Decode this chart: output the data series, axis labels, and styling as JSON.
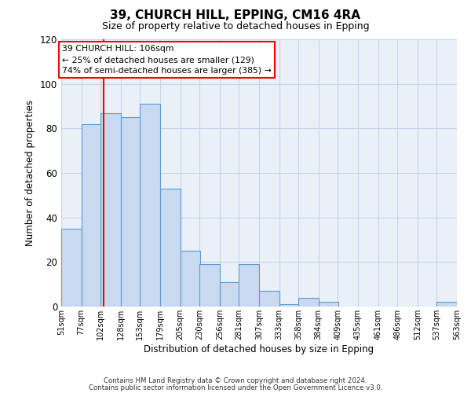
{
  "title": "39, CHURCH HILL, EPPING, CM16 4RA",
  "subtitle": "Size of property relative to detached houses in Epping",
  "xlabel": "Distribution of detached houses by size in Epping",
  "ylabel": "Number of detached properties",
  "bar_left_edges": [
    51,
    77,
    102,
    128,
    153,
    179,
    205,
    230,
    256,
    281,
    307,
    333,
    358,
    384,
    409,
    435,
    461,
    486,
    512,
    537
  ],
  "bar_heights": [
    35,
    82,
    87,
    85,
    91,
    53,
    25,
    19,
    11,
    19,
    7,
    1,
    4,
    2,
    0,
    0,
    0,
    0,
    0,
    2
  ],
  "bin_width": 26,
  "tick_labels": [
    "51sqm",
    "77sqm",
    "102sqm",
    "128sqm",
    "153sqm",
    "179sqm",
    "205sqm",
    "230sqm",
    "256sqm",
    "281sqm",
    "307sqm",
    "333sqm",
    "358sqm",
    "384sqm",
    "409sqm",
    "435sqm",
    "461sqm",
    "486sqm",
    "512sqm",
    "537sqm",
    "563sqm"
  ],
  "bar_facecolor": "#c9d9f0",
  "bar_edgecolor": "#5b9bd5",
  "grid_color": "#c8d4e8",
  "bg_color": "#eaf0f8",
  "redline_x": 106,
  "annotation_title": "39 CHURCH HILL: 106sqm",
  "annotation_line1": "← 25% of detached houses are smaller (129)",
  "annotation_line2": "74% of semi-detached houses are larger (385) →",
  "ylim": [
    0,
    120
  ],
  "yticks": [
    0,
    20,
    40,
    60,
    80,
    100,
    120
  ],
  "footer1": "Contains HM Land Registry data © Crown copyright and database right 2024.",
  "footer2": "Contains public sector information licensed under the Open Government Licence v3.0."
}
